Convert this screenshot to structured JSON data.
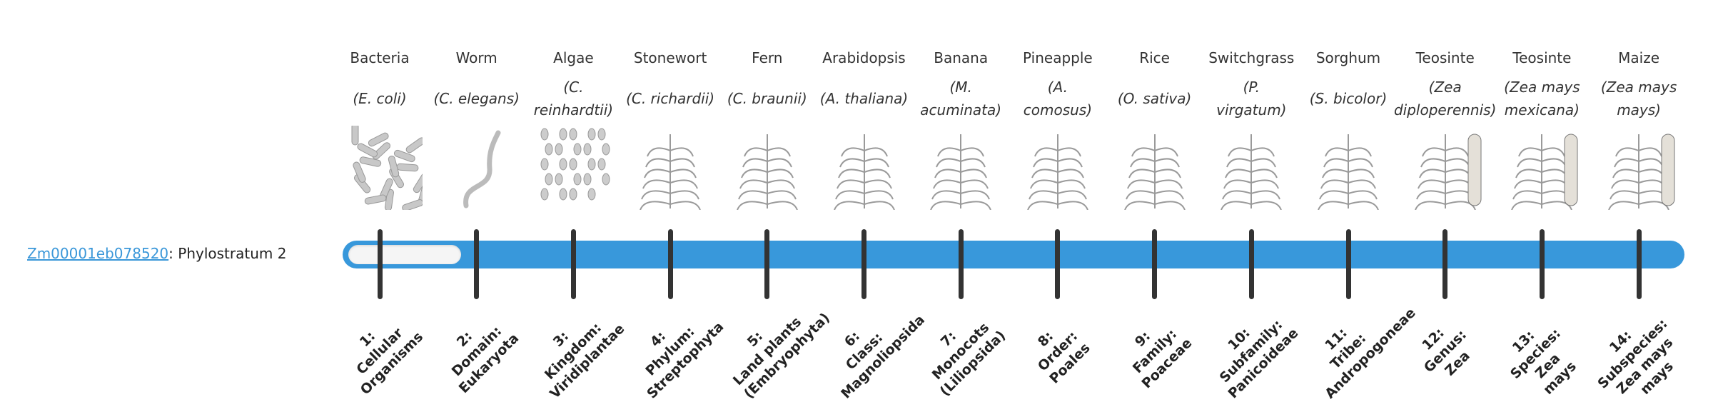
{
  "gene": {
    "id": "Zm00001eb078520",
    "suffix": ": Phylostratum 2"
  },
  "progress": {
    "current_stratum": 2,
    "total_strata": 14
  },
  "colors": {
    "bar": "#3898db",
    "link": "#3a97d9",
    "tick": "#333333"
  },
  "columns": [
    {
      "common": "Bacteria",
      "species": [
        "(E. coli)"
      ],
      "label": [
        "1:",
        "Cellular",
        "Organisms"
      ],
      "icon": "bacteria-icon"
    },
    {
      "common": "Worm",
      "species": [
        "(C. elegans)"
      ],
      "label": [
        "2:",
        "Domain:",
        "Eukaryota"
      ],
      "icon": "worm-icon"
    },
    {
      "common": "Algae",
      "species": [
        "(C.",
        "reinhardtii)"
      ],
      "label": [
        "3:",
        "Kingdom:",
        "Viridiplantae"
      ],
      "icon": "algae-icon"
    },
    {
      "common": "Stonewort",
      "species": [
        "(C. richardii)"
      ],
      "label": [
        "4:",
        "Phylum:",
        "Streptophyta"
      ],
      "icon": "stonewort-icon"
    },
    {
      "common": "Fern",
      "species": [
        "(C. braunii)"
      ],
      "label": [
        "5:",
        "Land plants",
        "(Embryophyta)"
      ],
      "icon": "fern-icon"
    },
    {
      "common": "Arabidopsis",
      "species": [
        "(A. thaliana)"
      ],
      "label": [
        "6:",
        "Class:",
        "Magnoliopsida"
      ],
      "icon": "arabidopsis-icon"
    },
    {
      "common": "Banana",
      "species": [
        "(M.",
        "acuminata)"
      ],
      "label": [
        "7:",
        "Monocots",
        "(Liliopsida)"
      ],
      "icon": "banana-icon"
    },
    {
      "common": "Pineapple",
      "species": [
        "(A.",
        "comosus)"
      ],
      "label": [
        "8:",
        "Order:",
        "Poales"
      ],
      "icon": "pineapple-icon"
    },
    {
      "common": "Rice",
      "species": [
        "(O. sativa)"
      ],
      "label": [
        "9:",
        "Family:",
        "Poaceae"
      ],
      "icon": "rice-icon"
    },
    {
      "common": "Switchgrass",
      "species": [
        "(P.",
        "virgatum)"
      ],
      "label": [
        "10:",
        "Subfamily:",
        "Panicoideae"
      ],
      "icon": "switchgrass-icon"
    },
    {
      "common": "Sorghum",
      "species": [
        "(S. bicolor)"
      ],
      "label": [
        "11:",
        "Tribe:",
        "Andropogoneae"
      ],
      "icon": "sorghum-icon"
    },
    {
      "common": "Teosinte",
      "species": [
        "(Zea",
        "diploperennis)"
      ],
      "label": [
        "12:",
        "Genus:",
        "Zea"
      ],
      "icon": "teosinte-icon"
    },
    {
      "common": "Teosinte",
      "species": [
        "(Zea mays",
        "mexicana)"
      ],
      "label": [
        "13:",
        "Species:",
        "Zea",
        "mays"
      ],
      "icon": "teosinte-mexicana-icon"
    },
    {
      "common": "Maize",
      "species": [
        "(Zea mays",
        "mays)"
      ],
      "label": [
        "14:",
        "Subspecies:",
        "Zea mays",
        "mays"
      ],
      "icon": "maize-icon"
    }
  ]
}
